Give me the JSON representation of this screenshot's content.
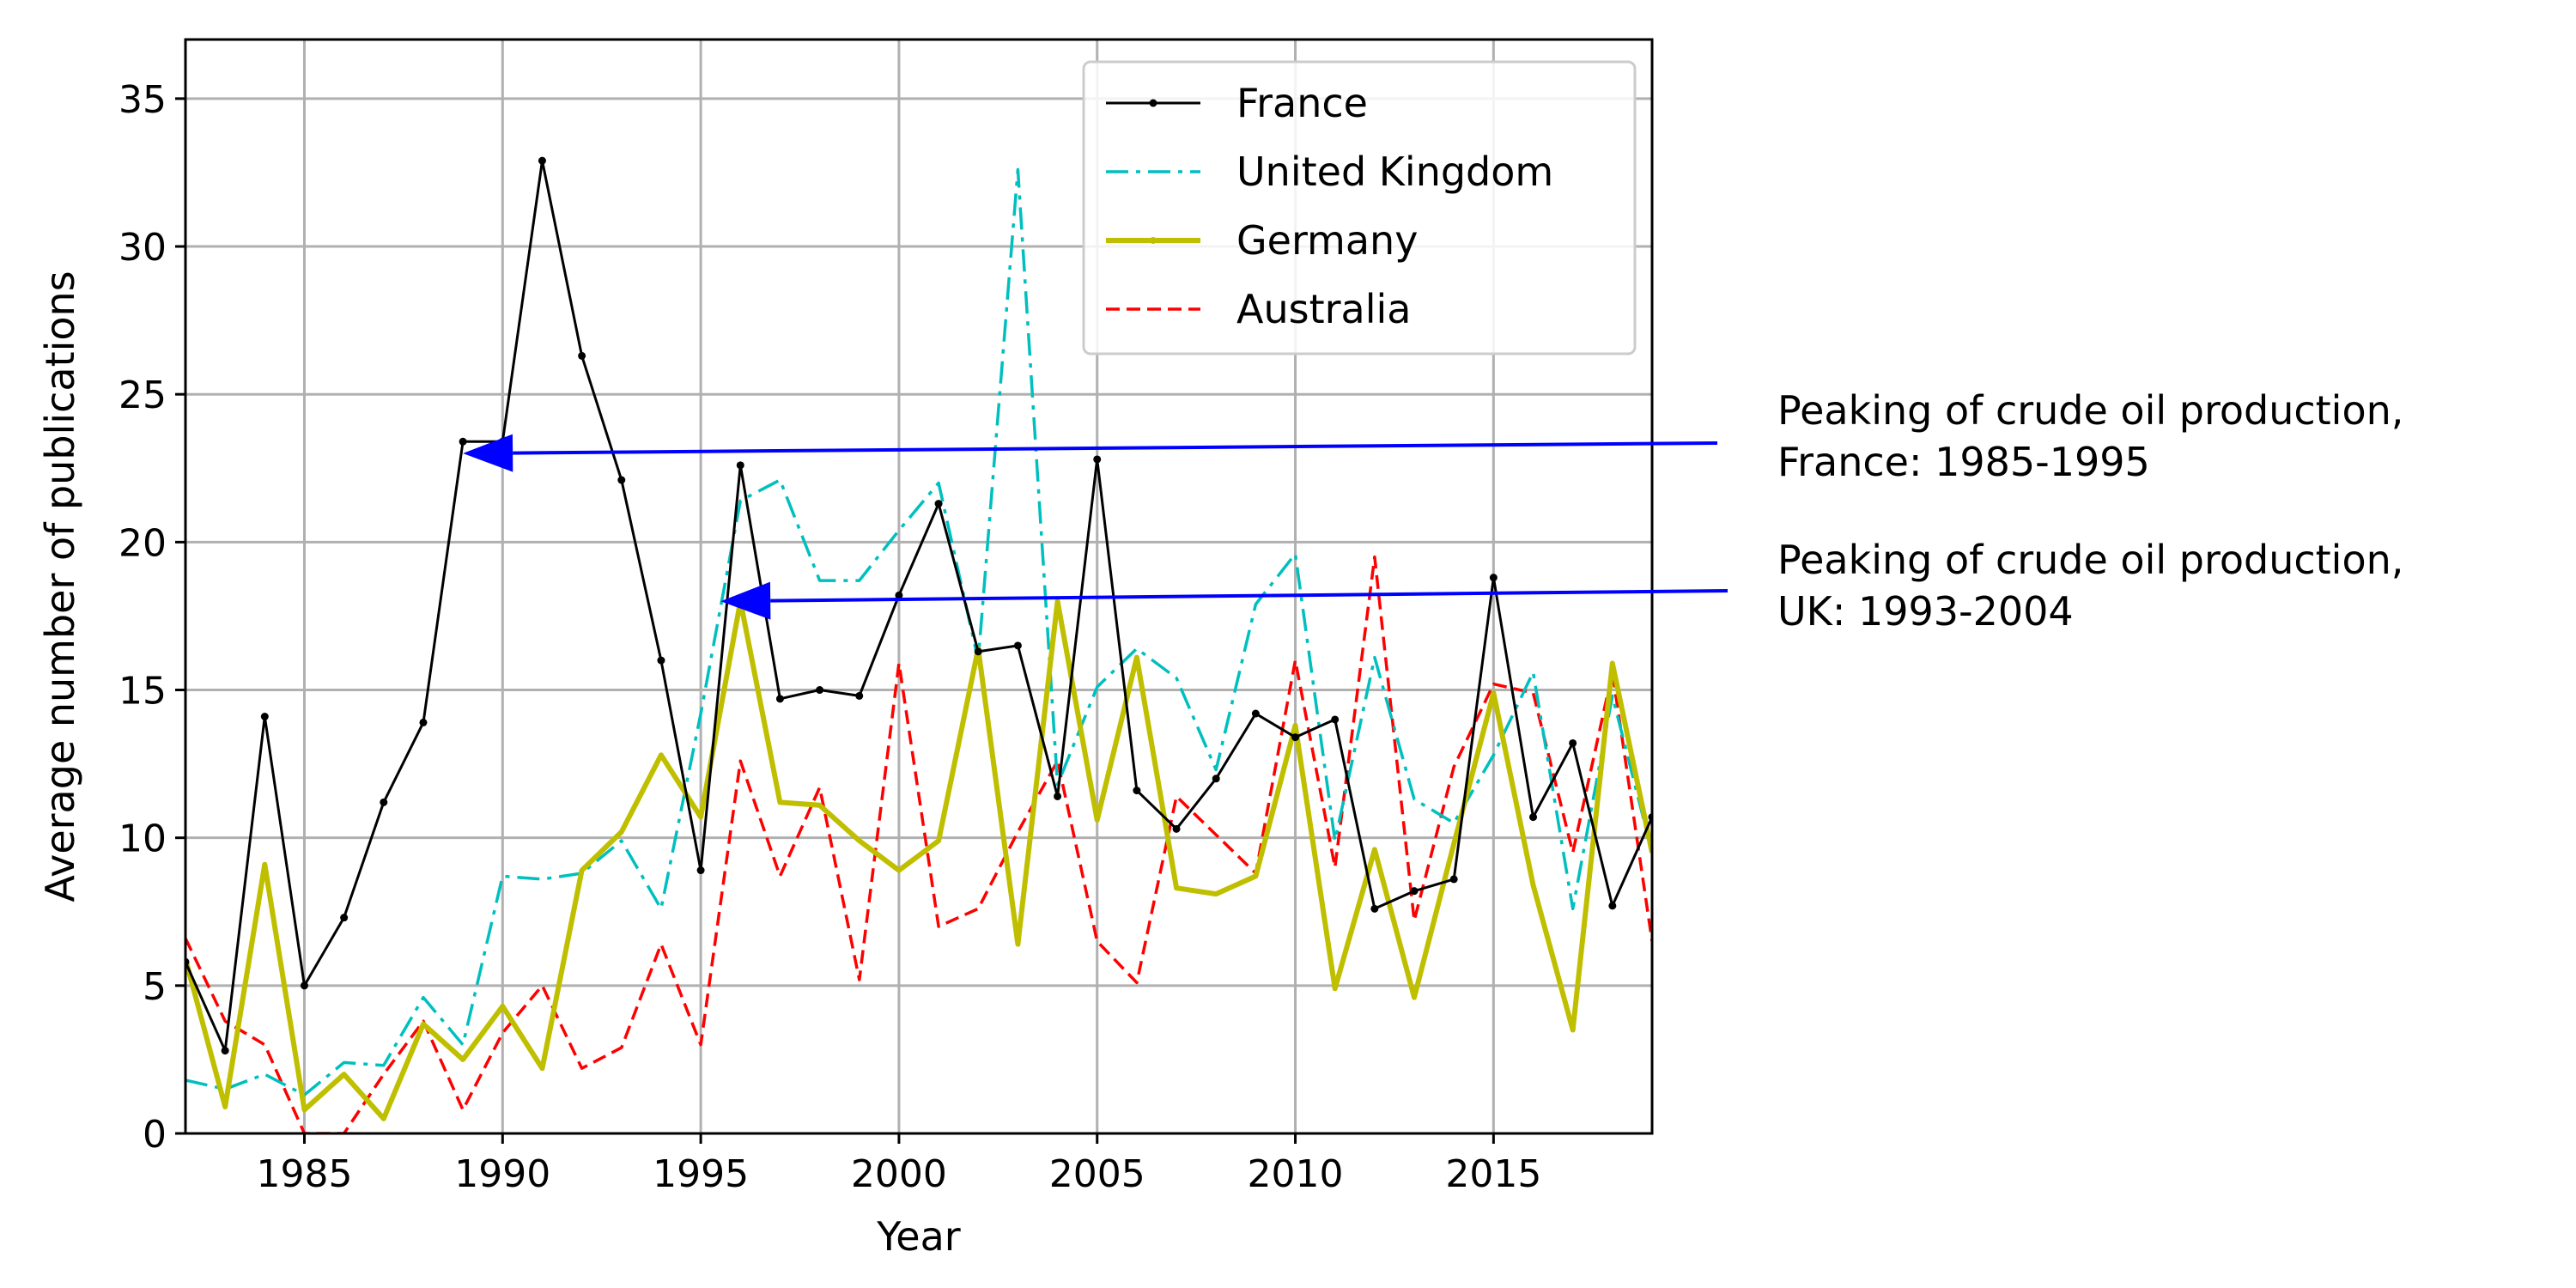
{
  "chart_data": {
    "type": "line",
    "title": "",
    "xlabel": "Year",
    "ylabel": "Average number of publications",
    "xlim": [
      1982,
      2019
    ],
    "ylim": [
      0,
      37
    ],
    "xticks": [
      1985,
      1990,
      1995,
      2000,
      2005,
      2010,
      2015
    ],
    "yticks": [
      0,
      5,
      10,
      15,
      20,
      25,
      30,
      35
    ],
    "grid": true,
    "legend_position": "upper-right",
    "x": [
      1982,
      1983,
      1984,
      1985,
      1986,
      1987,
      1988,
      1989,
      1990,
      1991,
      1992,
      1993,
      1994,
      1995,
      1996,
      1997,
      1998,
      1999,
      2000,
      2001,
      2002,
      2003,
      2004,
      2005,
      2006,
      2007,
      2008,
      2009,
      2010,
      2011,
      2012,
      2013,
      2014,
      2015,
      2016,
      2017,
      2018,
      2019
    ],
    "series": [
      {
        "name": "France",
        "color": "#000000",
        "style": "solid-dots",
        "values": [
          5.8,
          2.8,
          14.1,
          5.0,
          7.3,
          11.2,
          13.9,
          23.4,
          23.4,
          32.9,
          26.3,
          22.1,
          16.0,
          8.9,
          22.6,
          14.7,
          15.0,
          14.8,
          18.2,
          21.3,
          16.3,
          16.5,
          11.4,
          22.8,
          11.6,
          10.3,
          12.0,
          14.2,
          13.4,
          14.0,
          7.6,
          8.2,
          8.6,
          18.8,
          10.7,
          13.2,
          7.7,
          10.7
        ]
      },
      {
        "name": "United Kingdom",
        "color": "#00bfbf",
        "style": "dashdot",
        "values": [
          1.8,
          1.5,
          2.0,
          1.3,
          2.4,
          2.3,
          4.6,
          3.0,
          8.7,
          8.6,
          8.8,
          9.9,
          7.6,
          14.2,
          21.4,
          22.1,
          18.7,
          18.7,
          20.4,
          22.0,
          16.0,
          32.6,
          11.8,
          15.1,
          16.4,
          15.4,
          12.3,
          17.9,
          19.6,
          9.9,
          16.1,
          11.3,
          10.5,
          12.8,
          15.6,
          7.6,
          14.8,
          9.5
        ]
      },
      {
        "name": "Germany",
        "color": "#bfbf00",
        "style": "solid-thick",
        "values": [
          5.9,
          0.9,
          9.1,
          0.8,
          2.0,
          0.5,
          3.7,
          2.5,
          4.3,
          2.2,
          8.9,
          10.2,
          12.8,
          10.7,
          18.0,
          11.2,
          11.1,
          9.9,
          8.9,
          9.9,
          16.4,
          6.4,
          18.0,
          10.6,
          16.1,
          8.3,
          8.1,
          8.7,
          13.8,
          4.9,
          9.6,
          4.6,
          9.8,
          14.9,
          8.4,
          3.5,
          15.9,
          9.5
        ]
      },
      {
        "name": "Australia",
        "color": "#ff0000",
        "style": "dashed",
        "values": [
          6.6,
          3.8,
          3.0,
          0.0,
          0.0,
          2.0,
          3.8,
          0.8,
          3.4,
          5.0,
          2.2,
          2.9,
          6.4,
          3.0,
          12.6,
          8.7,
          11.7,
          5.2,
          15.9,
          7.0,
          7.6,
          10.2,
          12.6,
          6.5,
          5.1,
          11.4,
          10.1,
          8.8,
          16.0,
          9.0,
          19.5,
          7.2,
          12.4,
          15.2,
          14.9,
          9.5,
          15.6,
          6.5
        ]
      }
    ],
    "annotations": [
      {
        "lines": [
          "Peaking of crude oil production,",
          "France: 1985-1995"
        ],
        "arrow_to": [
          1989.0,
          23.0
        ],
        "color": "#0000ff"
      },
      {
        "lines": [
          "Peaking of crude oil production,",
          "UK: 1993-2004"
        ],
        "arrow_to": [
          1995.5,
          18.0
        ],
        "color": "#0000ff"
      }
    ]
  }
}
